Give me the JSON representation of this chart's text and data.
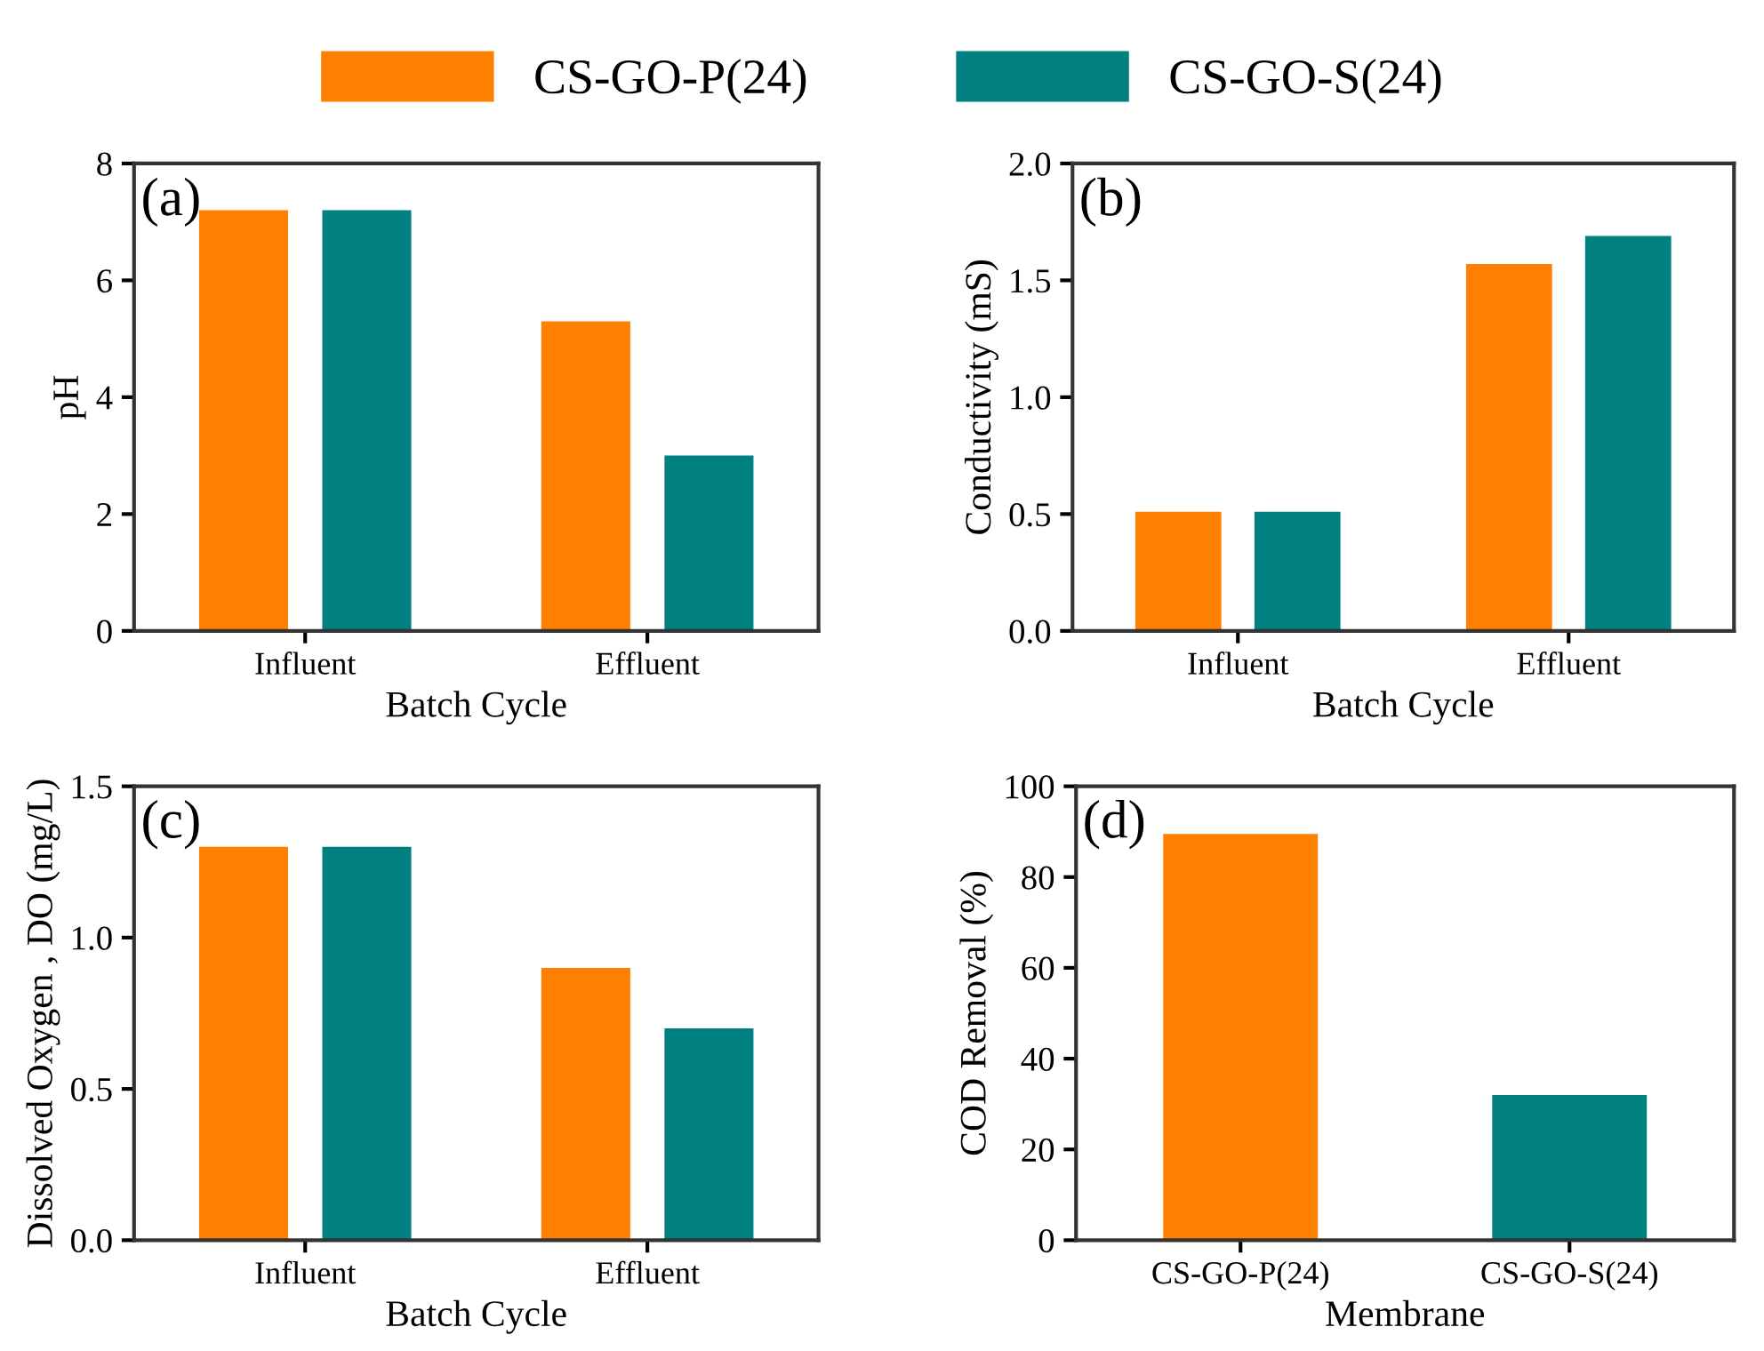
{
  "chart_data": [
    {
      "type": "bar",
      "categories": [
        "Influent",
        "Effluent"
      ],
      "xlabel": "Batch Cycle",
      "ylabel": "pH",
      "ylim": [
        0,
        8
      ],
      "yticks": [
        0,
        2,
        4,
        6,
        8
      ],
      "annotations": [
        "(a)"
      ],
      "legend": "top",
      "grid": false,
      "series": [
        {
          "name": "CS-GO-P(24)",
          "color": "#ff8000",
          "values": [
            7.2,
            5.3
          ]
        },
        {
          "name": "CS-GO-S(24)",
          "color": "#008080",
          "values": [
            7.2,
            3.0
          ]
        }
      ]
    },
    {
      "type": "bar",
      "categories": [
        "Influent",
        "Effluent"
      ],
      "xlabel": "Batch Cycle",
      "ylabel": "Conductivity (mS)",
      "ylim": [
        0,
        2.0
      ],
      "yticks": [
        {
          "value": 0,
          "label": "0.0"
        },
        0.5,
        {
          "value": 1,
          "label": "1.0"
        },
        1.5,
        {
          "value": 2,
          "label": "2.0"
        }
      ],
      "annotations": [
        "(b)"
      ],
      "grid": false,
      "series": [
        {
          "color": "#ff8000",
          "values": [
            0.51,
            1.57
          ]
        },
        {
          "color": "#008080",
          "values": [
            0.51,
            1.69
          ]
        }
      ]
    },
    {
      "type": "bar",
      "categories": [
        "Influent",
        "Effluent"
      ],
      "xlabel": "Batch Cycle",
      "ylabel": "Dissolved Oxygen , DO (mg/L)",
      "ylim": [
        0,
        1.5
      ],
      "yticks": [
        {
          "value": 0,
          "label": "0.0"
        },
        0.5,
        {
          "value": 1,
          "label": "1.0"
        },
        1.5
      ],
      "annotations": [
        "(c)"
      ],
      "grid": false,
      "series": [
        {
          "color": "#ff8000",
          "values": [
            1.3,
            0.9
          ]
        },
        {
          "color": "#008080",
          "values": [
            1.3,
            0.7
          ]
        }
      ]
    },
    {
      "type": "bar",
      "categories": [
        "CS-GO-P(24)",
        "CS-GO-S(24)"
      ],
      "xlabel": "Membrane",
      "ylabel": "COD Removal (%)",
      "ylim": [
        0,
        100
      ],
      "yticks": [
        0,
        20,
        40,
        60,
        80,
        100
      ],
      "annotations": [
        "(d)"
      ],
      "grid": false,
      "series": [
        {
          "colors": [
            "#ff8000",
            "#008080"
          ],
          "values": [
            89.5,
            32
          ]
        }
      ]
    }
  ]
}
